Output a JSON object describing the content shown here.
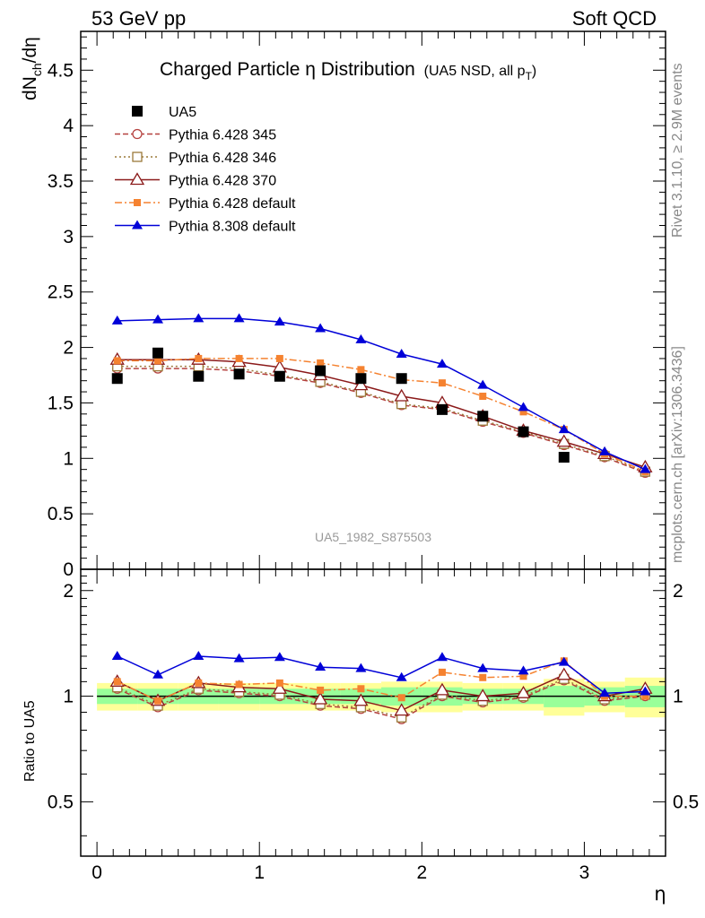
{
  "header": {
    "left": "53 GeV pp",
    "right": "Soft QCD"
  },
  "side": {
    "right_top": "Rivet 3.1.10, ≥ 2.9M events",
    "right_bottom": "mcplots.cern.ch [arXiv:1306.3436]"
  },
  "chart_data": {
    "type": "line",
    "title": "Charged Particle η Distribution",
    "title_suffix": "(UA5 NSD, all p",
    "title_suffix_sub": "T",
    "title_suffix_close": ")",
    "watermark": "UA5_1982_S875503",
    "xlabel": "η",
    "ylabel_main": "dN",
    "ylabel_sub": "ch",
    "ylabel_tail": "/dη",
    "ylabel_ratio": "Ratio to UA5",
    "xlim": [
      -0.1,
      3.5
    ],
    "ylim": [
      0,
      4.85
    ],
    "ratio_ylim": [
      0.35,
      2.3
    ],
    "x_ticks": [
      "0",
      "1",
      "2",
      "3"
    ],
    "y_ticks": [
      "0",
      "0.5",
      "1",
      "1.5",
      "2",
      "2.5",
      "3",
      "3.5",
      "4",
      "4.5"
    ],
    "ratio_ticks": [
      "0.5",
      "1",
      "2"
    ],
    "x": [
      0.125,
      0.375,
      0.625,
      0.875,
      1.125,
      1.375,
      1.625,
      1.875,
      2.125,
      2.375,
      2.625,
      2.875,
      3.125,
      3.375
    ],
    "data": {
      "name": "UA5",
      "x": [
        0.125,
        0.375,
        0.625,
        0.875,
        1.125,
        1.375,
        1.625,
        1.875,
        2.125,
        2.375,
        2.625,
        2.875
      ],
      "values": [
        1.72,
        1.95,
        1.74,
        1.76,
        1.74,
        1.79,
        1.72,
        1.72,
        1.44,
        1.38,
        1.24,
        1.01
      ],
      "ratio_x": [
        0.0,
        0.25,
        0.5,
        0.75,
        1.0,
        1.25,
        1.5,
        1.75,
        2.0,
        2.25,
        2.5,
        2.75,
        3.0,
        3.25,
        3.5
      ],
      "band_inner": [
        0.05,
        0.05,
        0.05,
        0.05,
        0.05,
        0.05,
        0.05,
        0.06,
        0.06,
        0.05,
        0.05,
        0.07,
        0.06,
        0.07
      ],
      "band_outer": [
        0.09,
        0.09,
        0.09,
        0.09,
        0.09,
        0.09,
        0.09,
        0.1,
        0.1,
        0.09,
        0.09,
        0.12,
        0.1,
        0.13
      ]
    },
    "series": [
      {
        "name": "Pythia 6.428 345",
        "color": "#b5413f",
        "marker": "circle-open",
        "dash": "6,3",
        "values": [
          1.81,
          1.81,
          1.81,
          1.79,
          1.74,
          1.68,
          1.59,
          1.48,
          1.44,
          1.33,
          1.23,
          1.12,
          1.01,
          0.87
        ],
        "ratio": [
          1.05,
          0.93,
          1.04,
          1.02,
          1.0,
          0.94,
          0.92,
          0.86,
          1.0,
          0.96,
          0.99,
          1.11,
          0.97,
          1.0
        ]
      },
      {
        "name": "Pythia 6.428 346",
        "color": "#9b7a3a",
        "marker": "square-open",
        "dash": "2,3",
        "values": [
          1.83,
          1.83,
          1.83,
          1.81,
          1.75,
          1.69,
          1.6,
          1.49,
          1.45,
          1.34,
          1.24,
          1.13,
          1.02,
          0.88
        ],
        "ratio": [
          1.06,
          0.94,
          1.05,
          1.03,
          1.01,
          0.95,
          0.93,
          0.87,
          1.01,
          0.97,
          1.0,
          1.12,
          0.98,
          1.01
        ]
      },
      {
        "name": "Pythia 6.428 370",
        "color": "#8b1a1a",
        "marker": "triangle-open",
        "dash": "",
        "values": [
          1.89,
          1.89,
          1.89,
          1.87,
          1.82,
          1.75,
          1.66,
          1.56,
          1.5,
          1.38,
          1.25,
          1.15,
          1.04,
          0.92
        ],
        "ratio": [
          1.1,
          0.97,
          1.09,
          1.06,
          1.05,
          0.98,
          0.97,
          0.91,
          1.04,
          1.0,
          1.02,
          1.15,
          1.0,
          1.05
        ]
      },
      {
        "name": "Pythia 6.428 default",
        "color": "#f58230",
        "marker": "square-filled",
        "dash": "8,3,2,3",
        "values": [
          1.88,
          1.88,
          1.9,
          1.9,
          1.9,
          1.86,
          1.8,
          1.71,
          1.68,
          1.56,
          1.42,
          1.26,
          1.04,
          0.88
        ],
        "ratio": [
          1.1,
          0.97,
          1.09,
          1.08,
          1.09,
          1.04,
          1.05,
          0.99,
          1.17,
          1.13,
          1.14,
          1.26,
          1.0,
          1.0
        ]
      },
      {
        "name": "Pythia 8.308 default",
        "color": "#0000d8",
        "marker": "triangle-filled",
        "dash": "",
        "values": [
          2.24,
          2.25,
          2.26,
          2.26,
          2.23,
          2.17,
          2.07,
          1.94,
          1.85,
          1.66,
          1.46,
          1.26,
          1.06,
          0.9
        ],
        "ratio": [
          1.3,
          1.15,
          1.3,
          1.28,
          1.29,
          1.21,
          1.2,
          1.13,
          1.29,
          1.2,
          1.18,
          1.25,
          1.02,
          1.03
        ]
      }
    ],
    "grid": false,
    "legend_position": "top-left"
  }
}
